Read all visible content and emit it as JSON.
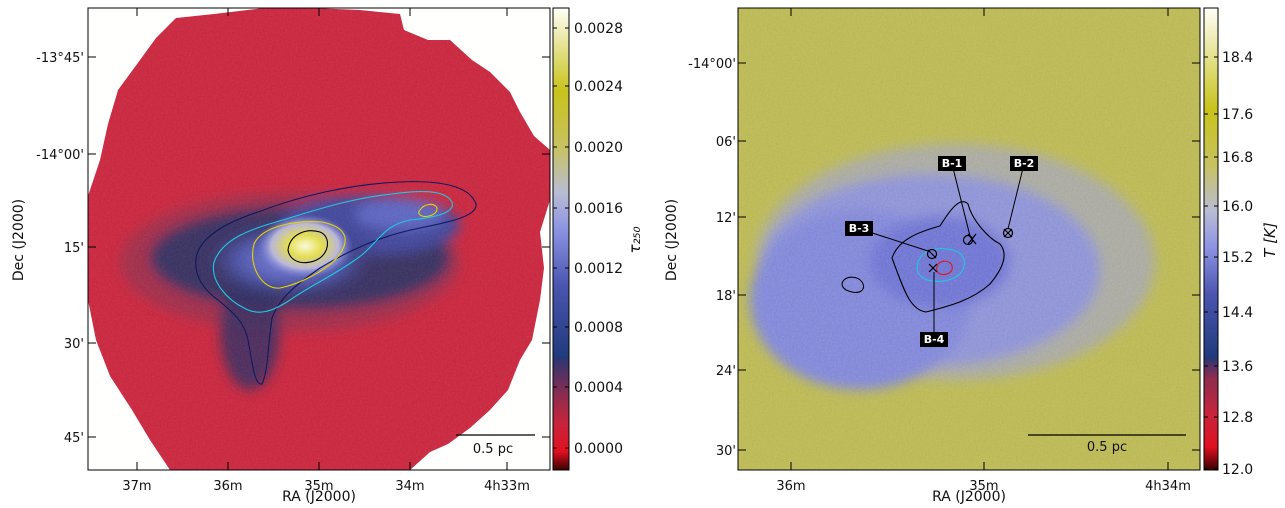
{
  "colors": {
    "map_red": "#c8243c",
    "map_dark": "#2c2d62",
    "map_blue": "#6e77d8",
    "map_yellow": "#d9cf2a",
    "map_bright": "#f3f0c6",
    "temp_yellow": "#b9b64e",
    "temp_blue": "#8a8fd6",
    "contour_navy": "#101860",
    "contour_cyan": "#20c8e0",
    "contour_yellow": "#e6d400",
    "contour_black": "#000000",
    "contour_red": "#e01818"
  },
  "chart_data": [
    {
      "type": "heatmap",
      "name": "optical-depth-map",
      "xlabel": "RA (J2000)",
      "ylabel": "Dec (J2000)",
      "x_ticks": [
        "37m",
        "36m",
        "35m",
        "34m",
        "4h33m"
      ],
      "y_ticks": [
        "-13°45'",
        "-14°00'",
        "15'",
        "30'",
        "45'"
      ],
      "colorbar": {
        "label": "τ₂₅₀",
        "ticks": [
          "0.0028",
          "0.0024",
          "0.0020",
          "0.0016",
          "0.0012",
          "0.0008",
          "0.0004",
          "0.0000"
        ],
        "range": [
          -0.0001,
          0.003
        ]
      },
      "scalebar": "0.5 pc",
      "contours": [
        "navy",
        "cyan",
        "yellow",
        "black"
      ]
    },
    {
      "type": "heatmap",
      "name": "temperature-map",
      "xlabel": "RA (J2000)",
      "ylabel": "Dec (J2000)",
      "x_ticks": [
        "36m",
        "35m",
        "4h34m"
      ],
      "y_ticks": [
        "-14°00'",
        "06'",
        "12'",
        "18'",
        "24'",
        "30'"
      ],
      "colorbar": {
        "label": "T [K]",
        "ticks": [
          "18.4",
          "17.6",
          "16.8",
          "16.0",
          "15.2",
          "14.4",
          "13.6",
          "12.8",
          "12.0"
        ],
        "range": [
          12.0,
          19.0
        ]
      },
      "scalebar": "0.5 pc",
      "sources": [
        "B-1",
        "B-2",
        "B-3",
        "B-4"
      ],
      "contours": [
        "black",
        "cyan",
        "red"
      ]
    }
  ]
}
